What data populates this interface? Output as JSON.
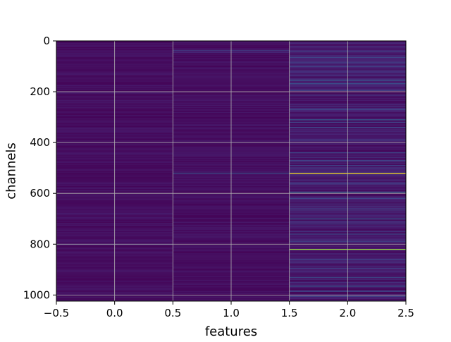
{
  "chart_data": {
    "type": "heatmap",
    "title": "",
    "xlabel": "features",
    "ylabel": "channels",
    "xlim": [
      -0.5,
      2.5
    ],
    "ylim": [
      1024,
      0
    ],
    "y_inverted": true,
    "grid": true,
    "colormap": "viridis",
    "n_rows": 1024,
    "n_cols": 3,
    "x_ticks": [
      {
        "value": -0.5,
        "label": "−0.5"
      },
      {
        "value": 0.0,
        "label": "0.0"
      },
      {
        "value": 0.5,
        "label": "0.5"
      },
      {
        "value": 1.0,
        "label": "1.0"
      },
      {
        "value": 1.5,
        "label": "1.5"
      },
      {
        "value": 2.0,
        "label": "2.0"
      },
      {
        "value": 2.5,
        "label": "2.5"
      }
    ],
    "y_ticks": [
      {
        "value": 0,
        "label": "0"
      },
      {
        "value": 200,
        "label": "200"
      },
      {
        "value": 400,
        "label": "400"
      },
      {
        "value": 600,
        "label": "600"
      },
      {
        "value": 800,
        "label": "800"
      },
      {
        "value": 1000,
        "label": "1000"
      }
    ],
    "columns": [
      {
        "feature": 0,
        "base_level": 0.05,
        "highlights": [
          {
            "channel": 175,
            "value": 0.1
          },
          {
            "channel": 400,
            "value": 0.1
          },
          {
            "channel": 580,
            "value": 0.1
          },
          {
            "channel": 680,
            "value": 0.12
          },
          {
            "channel": 800,
            "value": 0.18
          },
          {
            "channel": 905,
            "value": 0.1
          }
        ]
      },
      {
        "feature": 1,
        "base_level": 0.05,
        "highlights": [
          {
            "channel": 38,
            "value": 0.22
          },
          {
            "channel": 45,
            "value": 0.15
          },
          {
            "channel": 520,
            "value": 0.32
          }
        ]
      },
      {
        "feature": 2,
        "base_level": 0.1,
        "highlights": [
          {
            "channel": 40,
            "value": 0.25
          },
          {
            "channel": 65,
            "value": 0.25
          },
          {
            "channel": 85,
            "value": 0.22
          },
          {
            "channel": 100,
            "value": 0.25
          },
          {
            "channel": 155,
            "value": 0.35
          },
          {
            "channel": 168,
            "value": 0.3
          },
          {
            "channel": 195,
            "value": 0.25
          },
          {
            "channel": 270,
            "value": 0.25
          },
          {
            "channel": 310,
            "value": 0.35
          },
          {
            "channel": 320,
            "value": 0.25
          },
          {
            "channel": 340,
            "value": 0.25
          },
          {
            "channel": 390,
            "value": 0.22
          },
          {
            "channel": 440,
            "value": 0.28
          },
          {
            "channel": 470,
            "value": 0.25
          },
          {
            "channel": 490,
            "value": 0.25
          },
          {
            "channel": 522,
            "value": 1.0
          },
          {
            "channel": 560,
            "value": 0.25
          },
          {
            "channel": 595,
            "value": 0.4
          },
          {
            "channel": 620,
            "value": 0.25
          },
          {
            "channel": 660,
            "value": 0.22
          },
          {
            "channel": 700,
            "value": 0.35
          },
          {
            "channel": 720,
            "value": 0.25
          },
          {
            "channel": 760,
            "value": 0.28
          },
          {
            "channel": 790,
            "value": 0.25
          },
          {
            "channel": 820,
            "value": 0.85
          },
          {
            "channel": 860,
            "value": 0.25
          },
          {
            "channel": 895,
            "value": 0.22
          },
          {
            "channel": 930,
            "value": 0.28
          },
          {
            "channel": 965,
            "value": 0.35
          },
          {
            "channel": 985,
            "value": 0.3
          },
          {
            "channel": 1005,
            "value": 0.25
          }
        ]
      }
    ]
  }
}
